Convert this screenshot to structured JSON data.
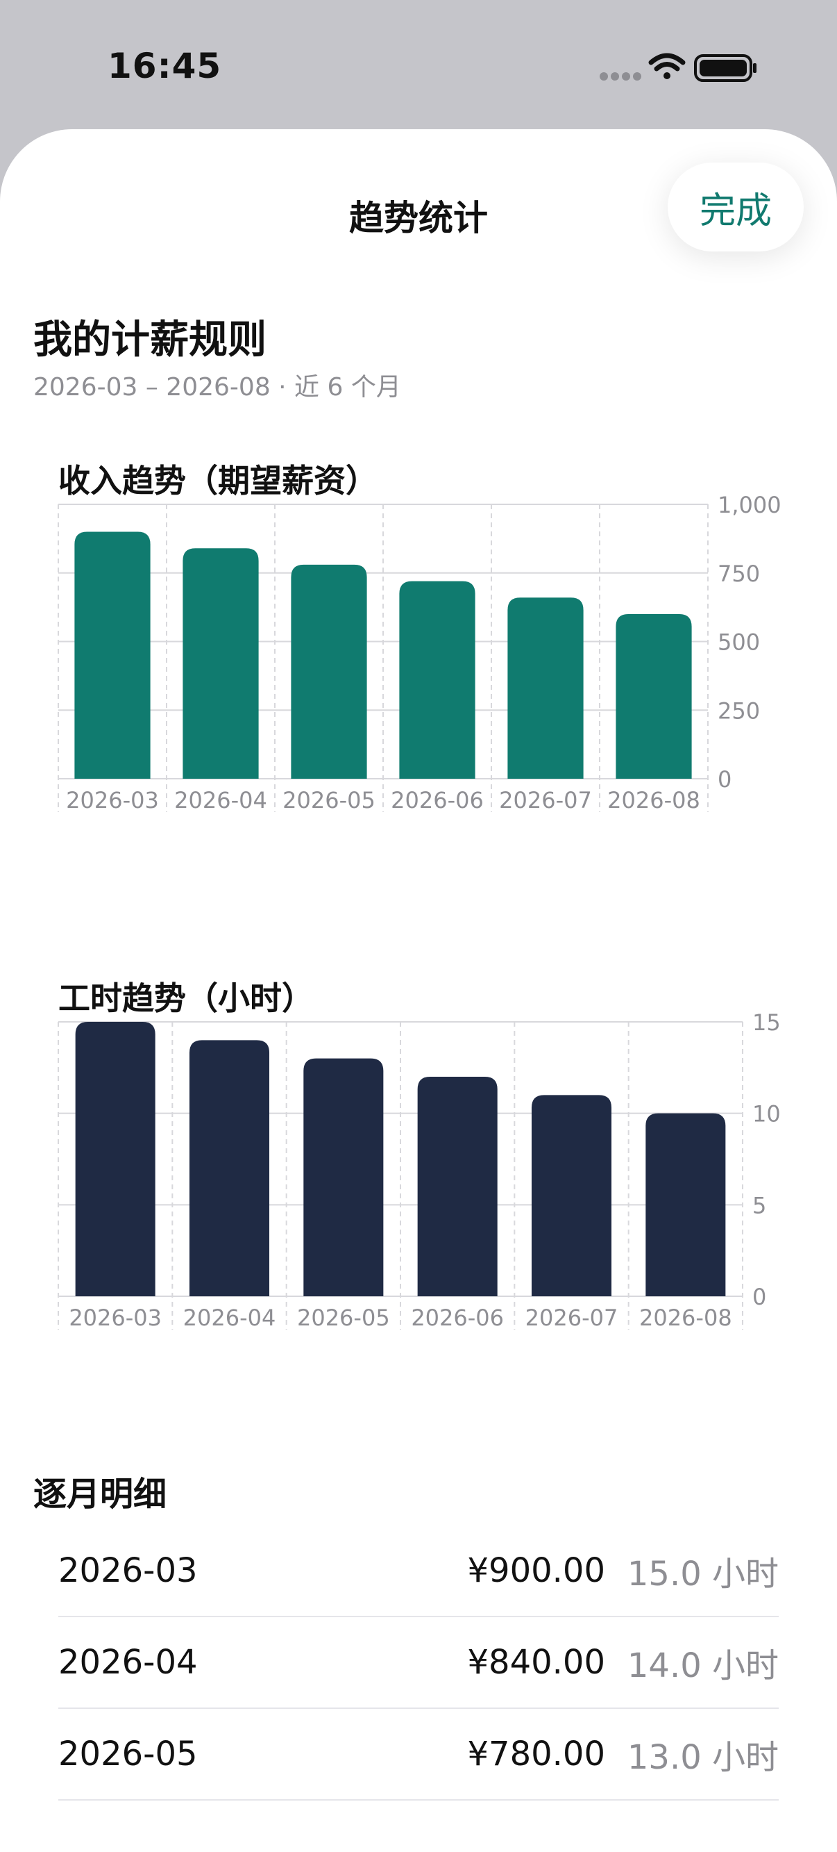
{
  "status_bar": {
    "time": "16:45"
  },
  "nav": {
    "title": "趋势统计",
    "done_label": "完成"
  },
  "rule": {
    "title": "我的计薪规则",
    "subtitle": "2026-03 – 2026-08 · 近 6 个月"
  },
  "colors": {
    "accent": "#117a6f",
    "income_bar": "#107b6f",
    "hours_bar": "#1f2a44",
    "grid": "#d8d8dc",
    "tick_text": "#8e8e93"
  },
  "icons": [
    "signal-dots-icon",
    "wifi-icon",
    "battery-icon"
  ],
  "chart_data": [
    {
      "type": "bar",
      "title": "收入趋势（期望薪资）",
      "categories": [
        "2026-03",
        "2026-04",
        "2026-05",
        "2026-06",
        "2026-07",
        "2026-08"
      ],
      "values": [
        900,
        840,
        780,
        720,
        660,
        600
      ],
      "ylim": [
        0,
        1000
      ],
      "yticks": [
        0,
        250,
        500,
        750,
        1000
      ],
      "ytick_labels": [
        "0",
        "250",
        "500",
        "750",
        "1,000"
      ],
      "grid": true,
      "y_axis_position": "right"
    },
    {
      "type": "bar",
      "title": "工时趋势（小时）",
      "categories": [
        "2026-03",
        "2026-04",
        "2026-05",
        "2026-06",
        "2026-07",
        "2026-08"
      ],
      "values": [
        15,
        14,
        13,
        12,
        11,
        10
      ],
      "ylim": [
        0,
        15
      ],
      "yticks": [
        0,
        5,
        10,
        15
      ],
      "ytick_labels": [
        "0",
        "5",
        "10",
        "15"
      ],
      "grid": true,
      "y_axis_position": "right"
    }
  ],
  "details": {
    "title": "逐月明细",
    "rows": [
      {
        "month": "2026-03",
        "income": "¥900.00",
        "hours": "15.0 小时"
      },
      {
        "month": "2026-04",
        "income": "¥840.00",
        "hours": "14.0 小时"
      },
      {
        "month": "2026-05",
        "income": "¥780.00",
        "hours": "13.0 小时"
      }
    ]
  }
}
